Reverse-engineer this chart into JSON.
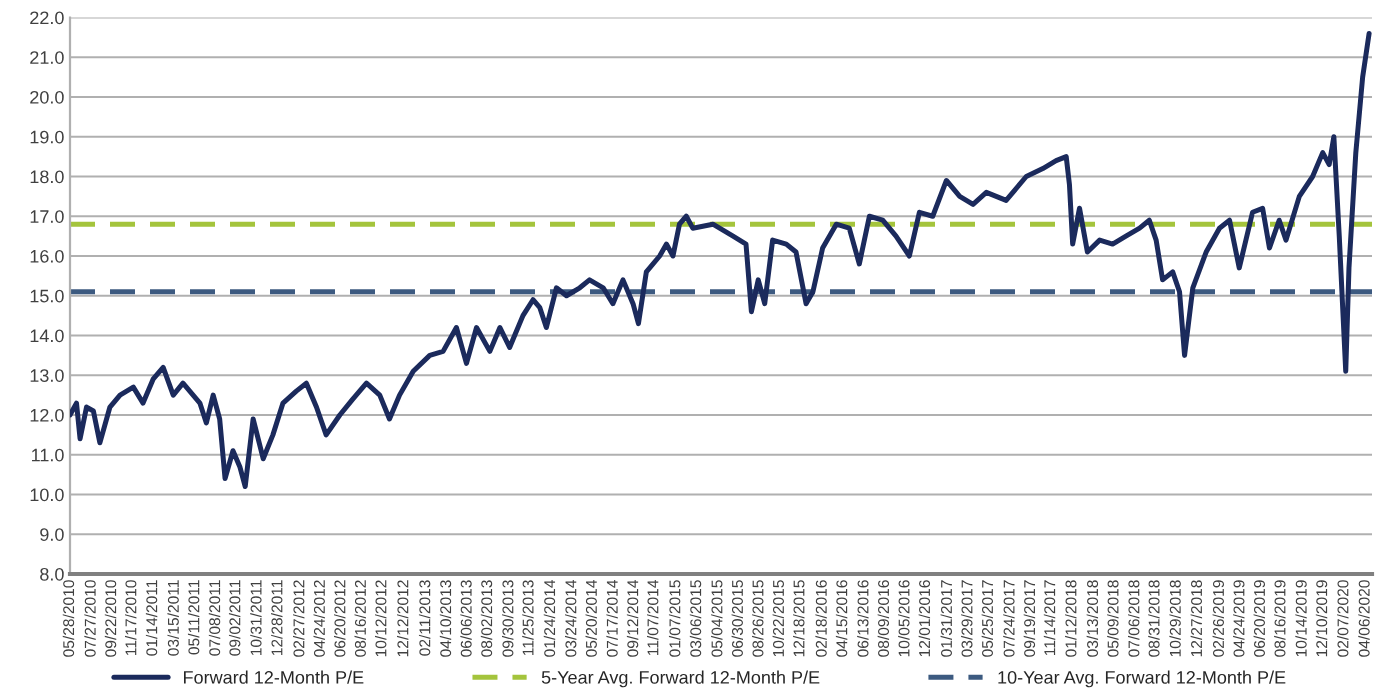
{
  "chart_data": {
    "type": "line",
    "xlim": [
      "2010-05-28",
      "2020-04-24"
    ],
    "ylim": [
      8,
      22
    ],
    "yticks": [
      {
        "value": 8,
        "label": "8.0"
      },
      {
        "value": 9,
        "label": "9.0"
      },
      {
        "value": 10,
        "label": "10.0"
      },
      {
        "value": 11,
        "label": "11.0"
      },
      {
        "value": 12,
        "label": "12.0"
      },
      {
        "value": 13,
        "label": "13.0"
      },
      {
        "value": 14,
        "label": "14.0"
      },
      {
        "value": 15,
        "label": "15.0"
      },
      {
        "value": 16,
        "label": "16.0"
      },
      {
        "value": 17,
        "label": "17.0"
      },
      {
        "value": 18,
        "label": "18.0"
      },
      {
        "value": 19,
        "label": "19.0"
      },
      {
        "value": 20,
        "label": "20.0"
      },
      {
        "value": 21,
        "label": "21.0"
      },
      {
        "value": 22,
        "label": "22.0"
      }
    ],
    "xticks": [
      {
        "value": "2010-05-28",
        "label": "05/28/2010"
      },
      {
        "value": "2010-07-27",
        "label": "07/27/2010"
      },
      {
        "value": "2010-09-22",
        "label": "09/22/2010"
      },
      {
        "value": "2010-11-17",
        "label": "11/17/2010"
      },
      {
        "value": "2011-01-14",
        "label": "01/14/2011"
      },
      {
        "value": "2011-03-15",
        "label": "03/15/2011"
      },
      {
        "value": "2011-05-11",
        "label": "05/11/2011"
      },
      {
        "value": "2011-07-08",
        "label": "07/08/2011"
      },
      {
        "value": "2011-09-02",
        "label": "09/02/2011"
      },
      {
        "value": "2011-10-31",
        "label": "10/31/2011"
      },
      {
        "value": "2011-12-28",
        "label": "12/28/2011"
      },
      {
        "value": "2012-02-27",
        "label": "02/27/2012"
      },
      {
        "value": "2012-04-24",
        "label": "04/24/2012"
      },
      {
        "value": "2012-06-20",
        "label": "06/20/2012"
      },
      {
        "value": "2012-08-16",
        "label": "08/16/2012"
      },
      {
        "value": "2012-10-12",
        "label": "10/12/2012"
      },
      {
        "value": "2012-12-12",
        "label": "12/12/2012"
      },
      {
        "value": "2013-02-11",
        "label": "02/11/2013"
      },
      {
        "value": "2013-04-10",
        "label": "04/10/2013"
      },
      {
        "value": "2013-06-06",
        "label": "06/06/2013"
      },
      {
        "value": "2013-08-02",
        "label": "08/02/2013"
      },
      {
        "value": "2013-09-30",
        "label": "09/30/2013"
      },
      {
        "value": "2013-11-25",
        "label": "11/25/2013"
      },
      {
        "value": "2014-01-24",
        "label": "01/24/2014"
      },
      {
        "value": "2014-03-24",
        "label": "03/24/2014"
      },
      {
        "value": "2014-05-20",
        "label": "05/20/2014"
      },
      {
        "value": "2014-07-17",
        "label": "07/17/2014"
      },
      {
        "value": "2014-09-12",
        "label": "09/12/2014"
      },
      {
        "value": "2014-11-07",
        "label": "11/07/2014"
      },
      {
        "value": "2015-01-07",
        "label": "01/07/2015"
      },
      {
        "value": "2015-03-06",
        "label": "03/06/2015"
      },
      {
        "value": "2015-05-04",
        "label": "05/04/2015"
      },
      {
        "value": "2015-06-30",
        "label": "06/30/2015"
      },
      {
        "value": "2015-08-26",
        "label": "08/26/2015"
      },
      {
        "value": "2015-10-22",
        "label": "10/22/2015"
      },
      {
        "value": "2015-12-18",
        "label": "12/18/2015"
      },
      {
        "value": "2016-02-18",
        "label": "02/18/2016"
      },
      {
        "value": "2016-04-15",
        "label": "04/15/2016"
      },
      {
        "value": "2016-06-13",
        "label": "06/13/2016"
      },
      {
        "value": "2016-08-09",
        "label": "08/09/2016"
      },
      {
        "value": "2016-10-05",
        "label": "10/05/2016"
      },
      {
        "value": "2016-12-01",
        "label": "12/01/2016"
      },
      {
        "value": "2017-01-31",
        "label": "01/31/2017"
      },
      {
        "value": "2017-03-29",
        "label": "03/29/2017"
      },
      {
        "value": "2017-05-25",
        "label": "05/25/2017"
      },
      {
        "value": "2017-07-24",
        "label": "07/24/2017"
      },
      {
        "value": "2017-09-19",
        "label": "09/19/2017"
      },
      {
        "value": "2017-11-14",
        "label": "11/14/2017"
      },
      {
        "value": "2018-01-12",
        "label": "01/12/2018"
      },
      {
        "value": "2018-03-13",
        "label": "03/13/2018"
      },
      {
        "value": "2018-05-09",
        "label": "05/09/2018"
      },
      {
        "value": "2018-07-06",
        "label": "07/06/2018"
      },
      {
        "value": "2018-08-31",
        "label": "08/31/2018"
      },
      {
        "value": "2018-10-29",
        "label": "10/29/2018"
      },
      {
        "value": "2018-12-27",
        "label": "12/27/2018"
      },
      {
        "value": "2019-02-26",
        "label": "02/26/2019"
      },
      {
        "value": "2019-04-24",
        "label": "04/24/2019"
      },
      {
        "value": "2019-06-20",
        "label": "06/20/2019"
      },
      {
        "value": "2019-08-16",
        "label": "08/16/2019"
      },
      {
        "value": "2019-10-14",
        "label": "10/14/2019"
      },
      {
        "value": "2019-12-10",
        "label": "12/10/2019"
      },
      {
        "value": "2020-02-07",
        "label": "02/07/2020"
      },
      {
        "value": "2020-04-06",
        "label": "04/06/2020"
      }
    ],
    "grid": "y",
    "legend": "bottom",
    "line_style": "solid",
    "series": [
      {
        "name": "Forward 12-Month P/E",
        "color": "#1b2a5c",
        "x": [
          "2010-05-28",
          "2010-06-15",
          "2010-06-25",
          "2010-07-13",
          "2010-08-01",
          "2010-08-19",
          "2010-09-16",
          "2010-10-14",
          "2010-11-20",
          "2010-12-17",
          "2011-01-14",
          "2011-02-11",
          "2011-03-11",
          "2011-04-07",
          "2011-05-24",
          "2011-06-11",
          "2011-06-30",
          "2011-07-18",
          "2011-08-02",
          "2011-08-24",
          "2011-09-12",
          "2011-09-27",
          "2011-10-19",
          "2011-11-16",
          "2011-12-13",
          "2012-01-10",
          "2012-02-16",
          "2012-03-15",
          "2012-04-12",
          "2012-05-09",
          "2012-06-16",
          "2012-07-22",
          "2012-08-29",
          "2012-10-05",
          "2012-11-01",
          "2012-11-29",
          "2013-01-06",
          "2013-02-21",
          "2013-03-30",
          "2013-05-06",
          "2013-06-03",
          "2013-07-01",
          "2013-08-07",
          "2013-09-04",
          "2013-10-01",
          "2013-11-07",
          "2013-12-05",
          "2013-12-24",
          "2014-01-11",
          "2014-02-08",
          "2014-03-08",
          "2014-04-14",
          "2014-05-11",
          "2014-06-18",
          "2014-07-15",
          "2014-08-12",
          "2014-09-09",
          "2014-09-24",
          "2014-10-16",
          "2014-11-22",
          "2014-12-11",
          "2014-12-29",
          "2015-01-16",
          "2015-02-04",
          "2015-02-22",
          "2015-04-19",
          "2015-06-14",
          "2015-07-20",
          "2015-08-04",
          "2015-08-23",
          "2015-09-10",
          "2015-10-02",
          "2015-11-09",
          "2015-12-06",
          "2016-01-03",
          "2016-01-22",
          "2016-02-18",
          "2016-03-27",
          "2016-05-02",
          "2016-05-30",
          "2016-06-27",
          "2016-08-03",
          "2016-09-09",
          "2016-10-16",
          "2016-11-13",
          "2016-12-20",
          "2017-01-27",
          "2017-03-05",
          "2017-04-11",
          "2017-05-18",
          "2017-07-12",
          "2017-09-06",
          "2017-10-22",
          "2017-11-28",
          "2017-12-26",
          "2018-01-04",
          "2018-01-13",
          "2018-02-01",
          "2018-02-23",
          "2018-03-29",
          "2018-05-04",
          "2018-06-10",
          "2018-07-18",
          "2018-08-14",
          "2018-09-02",
          "2018-09-20",
          "2018-10-18",
          "2018-11-06",
          "2018-11-20",
          "2018-12-13",
          "2019-01-19",
          "2019-02-25",
          "2019-03-25",
          "2019-04-21",
          "2019-05-28",
          "2019-06-25",
          "2019-07-14",
          "2019-08-10",
          "2019-08-29",
          "2019-10-05",
          "2019-11-11",
          "2019-12-09",
          "2019-12-27",
          "2020-01-09",
          "2020-01-24",
          "2020-02-11",
          "2020-02-20",
          "2020-03-10",
          "2020-03-29",
          "2020-04-16"
        ],
        "values": [
          12.0,
          12.3,
          11.4,
          12.2,
          12.1,
          11.3,
          12.2,
          12.5,
          12.7,
          12.3,
          12.9,
          13.2,
          12.5,
          12.8,
          12.3,
          11.8,
          12.5,
          11.9,
          10.4,
          11.1,
          10.7,
          10.2,
          11.9,
          10.9,
          11.5,
          12.3,
          12.6,
          12.8,
          12.2,
          11.5,
          12.0,
          12.4,
          12.8,
          12.5,
          11.9,
          12.5,
          13.1,
          13.5,
          13.6,
          14.2,
          13.3,
          14.2,
          13.6,
          14.2,
          13.7,
          14.5,
          14.9,
          14.7,
          14.2,
          15.2,
          15.0,
          15.2,
          15.4,
          15.2,
          14.8,
          15.4,
          14.8,
          14.3,
          15.6,
          16.0,
          16.3,
          16.0,
          16.8,
          17.0,
          16.7,
          16.8,
          16.5,
          16.3,
          14.6,
          15.4,
          14.8,
          16.4,
          16.3,
          16.1,
          14.8,
          15.1,
          16.2,
          16.8,
          16.7,
          15.8,
          17.0,
          16.9,
          16.5,
          16.0,
          17.1,
          17.0,
          17.9,
          17.5,
          17.3,
          17.6,
          17.4,
          18.0,
          18.2,
          18.4,
          18.5,
          17.8,
          16.3,
          17.2,
          16.1,
          16.4,
          16.3,
          16.5,
          16.7,
          16.9,
          16.4,
          15.4,
          15.6,
          15.1,
          13.5,
          15.2,
          16.1,
          16.7,
          16.9,
          15.7,
          17.1,
          17.2,
          16.2,
          16.9,
          16.4,
          17.5,
          18.0,
          18.6,
          18.3,
          19.0,
          16.5,
          13.1,
          15.7,
          18.6,
          20.5,
          21.6
        ]
      }
    ],
    "ref_lines": [
      {
        "axis": "y",
        "value": 16.8,
        "label": "5-Year Avg. Forward 12-Month P/E",
        "color": "#a4c43c",
        "line_style": "dashed"
      },
      {
        "axis": "y",
        "value": 15.1,
        "label": "10-Year Avg. Forward 12-Month P/E",
        "color": "#3c5a80",
        "line_style": "dashed"
      }
    ]
  }
}
